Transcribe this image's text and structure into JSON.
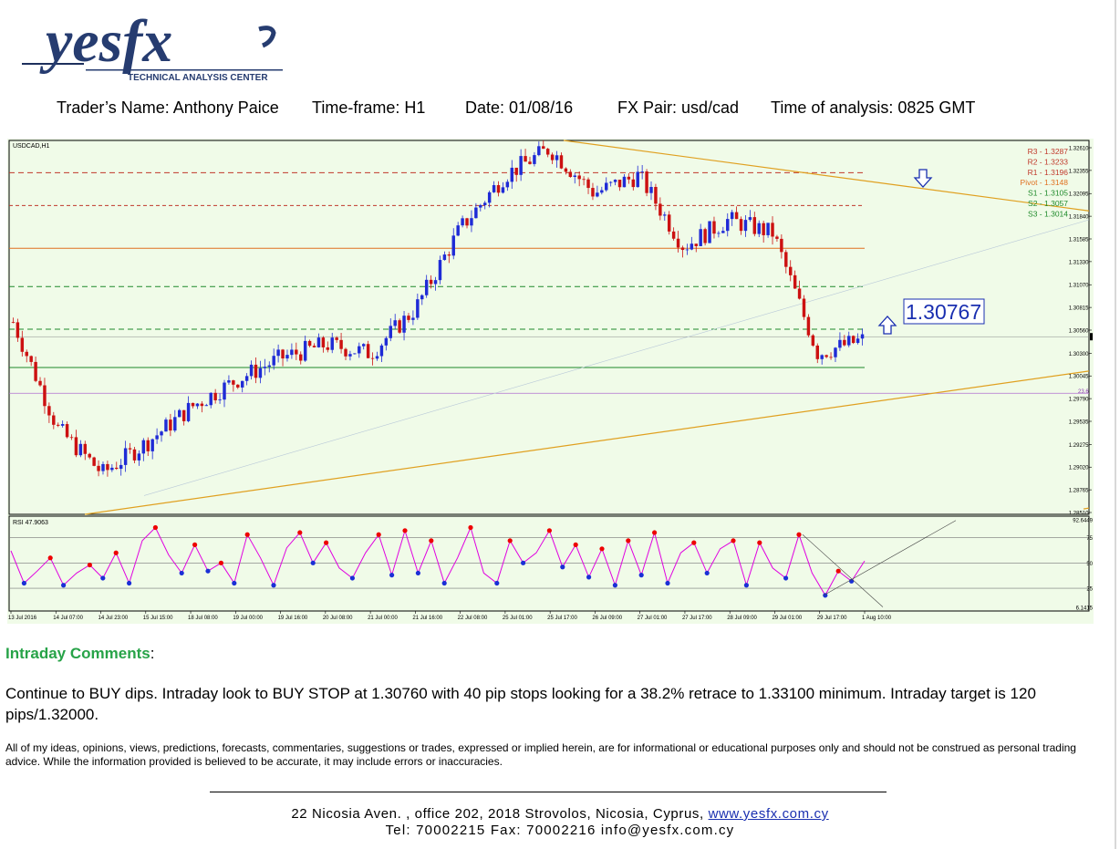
{
  "header": {
    "logo_text": "yesfx",
    "logo_tagline": "TECHNICAL ANALYSIS CENTER",
    "trader_name": "Trader’s Name: Anthony Paice",
    "timeframe": "Time-frame:  H1",
    "date": "Date:  01/08/16",
    "pair": "FX Pair: usd/cad",
    "time_of_analysis": "Time of analysis: 0825 GMT"
  },
  "colors": {
    "chart_bg": "#f0fbe8",
    "bull_candle": "#1f2bd6",
    "bear_candle": "#cc1111",
    "resistance": "#c0392b",
    "pivot": "#e07020",
    "support": "#1e8a2a",
    "trend_orange": "#e0a020",
    "rsi_line": "#e000e0",
    "arrow_blue": "#1a2fb0",
    "comments_heading": "#27a348"
  },
  "chart_data": [
    {
      "type": "line",
      "title": "USDCAD,H1",
      "series": [
        {
          "name": "",
          "x": [
            "13 Jul 2016",
            "14 Jul 07:00",
            "14 Jul 23:00",
            "15 Jul 15:00",
            "18 Jul 08:00",
            "19 Jul 00:00",
            "19 Jul 16:00",
            "20 Jul 08:00",
            "21 Jul 00:00",
            "21 Jul 16:00",
            "22 Jul 08:00",
            "25 Jul 01:00",
            "25 Jul 17:00",
            "26 Jul 09:00",
            "27 Jul 01:00",
            "27 Jul 17:00",
            "28 Jul 09:00",
            "29 Jul 01:00",
            "29 Jul 17:00",
            "1 Aug 10:00"
          ],
          "values": [
            1.3065,
            1.2945,
            1.2895,
            1.293,
            1.297,
            1.3,
            1.3025,
            1.304,
            1.303,
            1.308,
            1.317,
            1.323,
            1.326,
            1.321,
            1.323,
            1.315,
            1.318,
            1.3165,
            1.303,
            1.3045
          ]
        }
      ],
      "ylim": [
        1.2851,
        1.3261
      ],
      "y_ticks": [
        "1.32610",
        "1.32355",
        "1.32095",
        "1.31840",
        "1.31585",
        "1.31330",
        "1.31070",
        "1.30815",
        "1.30560",
        "1.30300",
        "1.30045",
        "1.29790",
        "1.29535",
        "1.29275",
        "1.29020",
        "1.28765",
        "1.28510"
      ],
      "current_price": "1.30486",
      "pivot_levels": [
        {
          "label": "R3",
          "value": 1.3287,
          "text": "R3 - 1.3287"
        },
        {
          "label": "R2",
          "value": 1.3233,
          "text": "R2 - 1.3233"
        },
        {
          "label": "R1",
          "value": 1.3196,
          "text": "R1 - 1.3196"
        },
        {
          "label": "Pivot",
          "value": 1.3148,
          "text": "Pivot - 1.3148"
        },
        {
          "label": "S1",
          "value": 1.3105,
          "text": "S1 - 1.3105"
        },
        {
          "label": "S2",
          "value": 1.3057,
          "text": "S2 - 1.3057"
        },
        {
          "label": "S3",
          "value": 1.3014,
          "text": "S3 - 1.3014"
        }
      ],
      "fib_label": "23.6",
      "fib_value": 1.2985,
      "annotation": "1.30767",
      "grid": false
    },
    {
      "type": "line",
      "title": "RSI 47.9063",
      "ylim": [
        6.1415,
        92.6449
      ],
      "y_ticks": [
        "92.6449",
        "75",
        "50",
        "25",
        "6.1415"
      ],
      "series": [
        {
          "name": "",
          "values": [
            62,
            30,
            42,
            55,
            28,
            40,
            48,
            35,
            60,
            30,
            72,
            85,
            58,
            40,
            68,
            42,
            50,
            30,
            78,
            55,
            28,
            65,
            80,
            50,
            70,
            45,
            35,
            60,
            78,
            38,
            82,
            40,
            72,
            30,
            55,
            85,
            40,
            30,
            72,
            50,
            60,
            82,
            46,
            68,
            36,
            64,
            28,
            72,
            38,
            80,
            30,
            60,
            70,
            40,
            64,
            72,
            28,
            70,
            45,
            35,
            78,
            40,
            18,
            42,
            32,
            52
          ]
        }
      ]
    }
  ],
  "comments": {
    "heading": "Intraday Comments",
    "colon": ":",
    "body": "Continue to BUY dips.  Intraday look to BUY STOP at 1.30760 with 40 pip stops looking for a 38.2% retrace to 1.33100 minimum.  Intraday target is 120 pips/1.32000.",
    "disclaimer": "All of my ideas, opinions, views, predictions, forecasts, commentaries, suggestions or trades, expressed or implied herein, are for informational or educational purposes only and should not be construed as personal trading advice. While the information provided is believed to be accurate, it may include errors or inaccuracies."
  },
  "footer": {
    "address": "22 Nicosia Aven. ,  office 202,  2018 Strovolos,  Nicosia,  Cyprus,",
    "website": "www.yesfx.com.cy",
    "contact": "Tel:  70002215  Fax:  70002216  info@yesfx.com.cy"
  }
}
